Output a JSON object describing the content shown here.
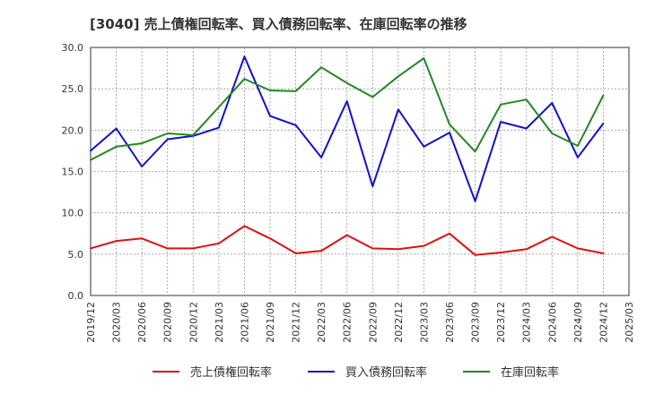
{
  "chart_data": {
    "type": "line",
    "title": "[3040]  売上債権回転率、買入債務回転率、在庫回転率の推移",
    "xlabel": "",
    "ylabel": "",
    "ylim": [
      0,
      30
    ],
    "yticks": [
      "0.0",
      "5.0",
      "10.0",
      "15.0",
      "20.0",
      "25.0",
      "30.0"
    ],
    "ytick_values": [
      0,
      5,
      10,
      15,
      20,
      25,
      30
    ],
    "xticks": [
      "2019/12",
      "2020/03",
      "2020/06",
      "2020/09",
      "2020/12",
      "2021/03",
      "2021/06",
      "2021/09",
      "2021/12",
      "2022/03",
      "2022/06",
      "2022/09",
      "2022/12",
      "2023/03",
      "2023/06",
      "2023/09",
      "2023/12",
      "2024/03",
      "2024/06",
      "2024/09",
      "2024/12",
      "2025/03"
    ],
    "grid": true,
    "legend_position": "bottom",
    "x_months": [
      0,
      3,
      6,
      9,
      12,
      15,
      18,
      21,
      24,
      27,
      30,
      33,
      36,
      39,
      42,
      45,
      48,
      51,
      54,
      57,
      60
    ],
    "series": [
      {
        "name": "売上債権回転率",
        "color": "#dd1111",
        "values": [
          5.7,
          6.6,
          6.9,
          5.7,
          5.7,
          6.3,
          8.4,
          6.9,
          5.1,
          5.4,
          7.3,
          5.7,
          5.6,
          6.0,
          7.5,
          4.9,
          5.2,
          5.6,
          7.1,
          5.7,
          5.1
        ]
      },
      {
        "name": "買入債務回転率",
        "color": "#1111cc",
        "values": [
          17.5,
          20.2,
          15.6,
          18.9,
          19.3,
          20.3,
          28.9,
          21.7,
          20.6,
          16.7,
          23.5,
          13.2,
          22.5,
          18.0,
          19.7,
          11.4,
          21.0,
          20.2,
          23.3,
          16.7,
          20.8
        ]
      },
      {
        "name": "在庫回転率",
        "color": "#228822",
        "values": [
          16.4,
          18.0,
          18.4,
          19.6,
          19.4,
          22.8,
          26.2,
          24.8,
          24.7,
          27.6,
          25.7,
          24.0,
          26.5,
          28.7,
          20.7,
          17.4,
          23.1,
          23.7,
          19.6,
          18.1,
          24.2
        ]
      }
    ]
  }
}
